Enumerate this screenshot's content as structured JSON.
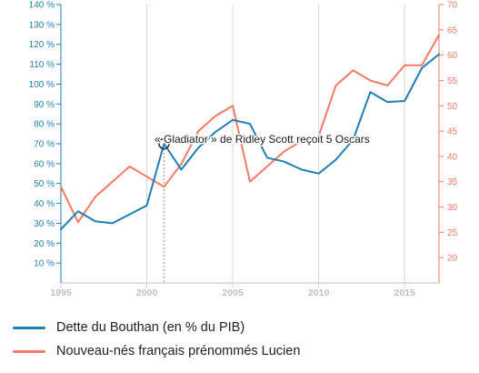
{
  "chart_data": {
    "type": "line",
    "x_ticks": [
      "1995",
      "2000",
      "2005",
      "2010",
      "2015"
    ],
    "xlim": [
      1995,
      2017
    ],
    "y_left": {
      "ticks": [
        "10 %",
        "20 %",
        "30 %",
        "40 %",
        "50 %",
        "60 %",
        "70 %",
        "80 %",
        "90 %",
        "100 %",
        "110 %",
        "120 %",
        "130 %",
        "140 %"
      ],
      "ylim": [
        0,
        140
      ],
      "color": "#1f7fb4"
    },
    "y_right": {
      "ticks": [
        "20",
        "25",
        "30",
        "35",
        "40",
        "45",
        "50",
        "55",
        "60",
        "65",
        "70"
      ],
      "ylim": [
        15,
        70
      ],
      "color": "#f47a66"
    },
    "series": [
      {
        "name": "Dette du Bouthan (en % du PIB)",
        "axis": "left",
        "color": "#1f7fb4",
        "x": [
          1995,
          1996,
          1997,
          1998,
          1999,
          2000,
          2001,
          2002,
          2003,
          2004,
          2005,
          2006,
          2007,
          2008,
          2009,
          2010,
          2011,
          2012,
          2013,
          2014,
          2015,
          2016,
          2017
        ],
        "y": [
          27,
          36,
          31,
          30,
          34.5,
          39,
          70,
          57,
          68,
          76,
          82,
          80,
          63,
          61,
          57,
          55,
          62,
          72,
          96,
          91,
          91.5,
          108,
          115
        ]
      },
      {
        "name": "Nouveau-nés français prénommés Lucien",
        "axis": "right",
        "color": "#f47a66",
        "x": [
          1995,
          1996,
          1997,
          1998,
          1999,
          2000,
          2001,
          2002,
          2003,
          2004,
          2005,
          2006,
          2007,
          2008,
          2009,
          2010,
          2011,
          2012,
          2013,
          2014,
          2015,
          2016,
          2017
        ],
        "y": [
          34,
          27,
          32,
          35,
          38,
          36,
          34,
          38.5,
          45,
          48,
          50,
          35,
          38,
          41,
          43,
          44,
          54,
          57,
          55,
          54,
          58,
          58,
          64
        ]
      }
    ],
    "annotation": {
      "text": "« Gladiator » de Ridley Scott reçoit 5 Oscars",
      "x": 2001,
      "series_index": 0
    }
  }
}
